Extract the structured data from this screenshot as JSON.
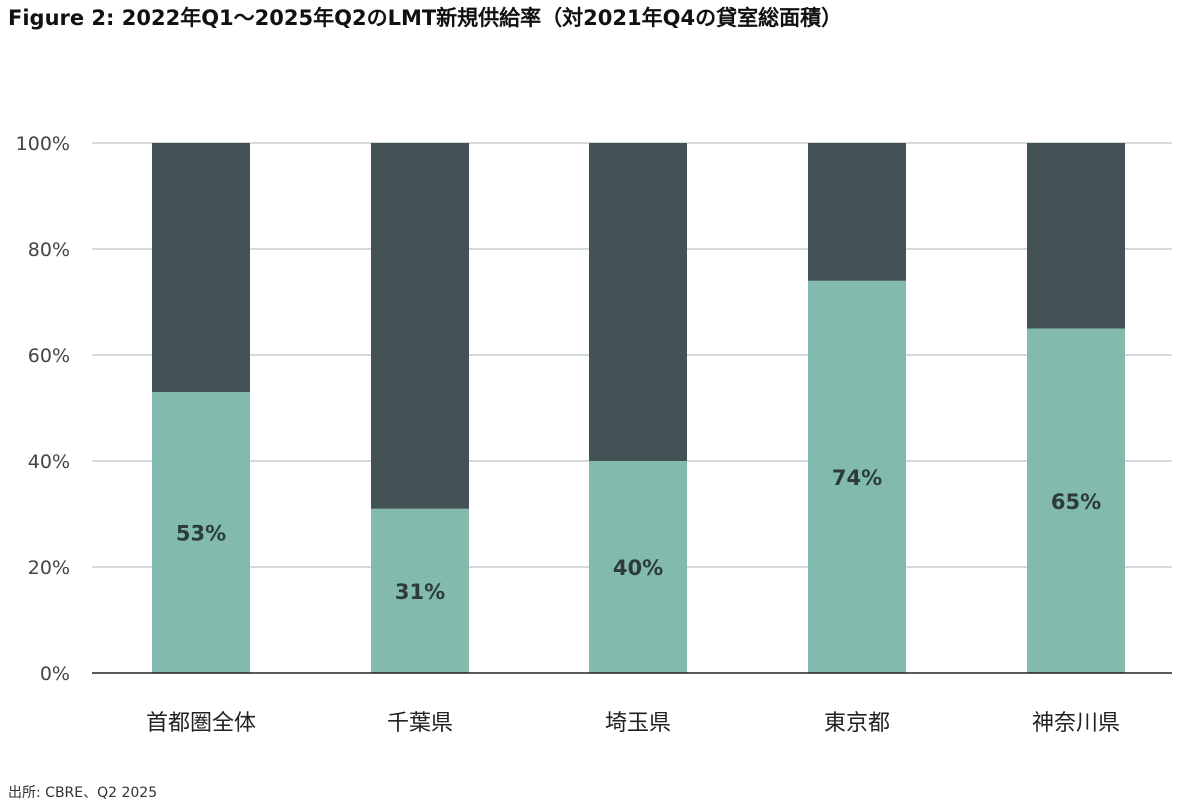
{
  "title": "Figure 2: 2022年Q1〜2025年Q2のLMT新規供給率（対2021年Q4の貸室総面積）",
  "source": "出所: CBRE、Q2 2025",
  "colors": {
    "lower": "#82bbad",
    "upper": "#435254",
    "grid": "#bfc4c4",
    "axis": "#222222"
  },
  "chart_data": {
    "type": "bar",
    "stacked": true,
    "categories": [
      "首都圏全体",
      "千葉県",
      "埼玉県",
      "東京都",
      "神奈川県"
    ],
    "series": [
      {
        "values": [
          53,
          31,
          40,
          74,
          65
        ]
      },
      {
        "values": [
          47,
          69,
          60,
          26,
          35
        ]
      }
    ],
    "data_labels": [
      "53%",
      "31%",
      "40%",
      "74%",
      "65%"
    ],
    "y_ticks": [
      "0%",
      "20%",
      "40%",
      "60%",
      "80%",
      "100%"
    ],
    "ylim": [
      0,
      100
    ],
    "grid": true,
    "legend": "none"
  }
}
